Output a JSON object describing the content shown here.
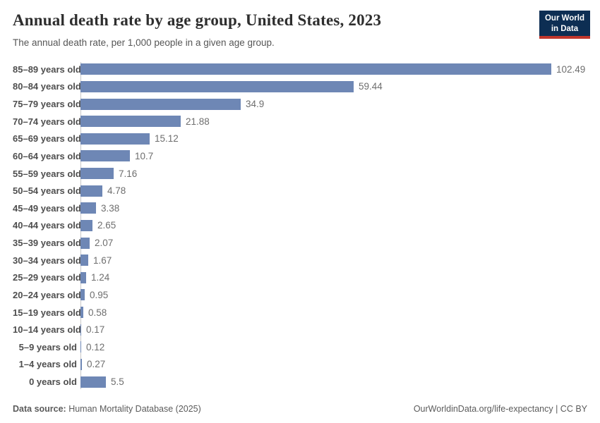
{
  "header": {
    "title": "Annual death rate by age group, United States, 2023",
    "subtitle": "The annual death rate, per 1,000 people in a given age group.",
    "logo": {
      "line1": "Our World",
      "line2": "in Data"
    }
  },
  "chart_data": {
    "type": "bar",
    "orientation": "horizontal",
    "title": "Annual death rate by age group, United States, 2023",
    "subtitle": "The annual death rate, per 1,000 people in a given age group.",
    "xlabel": "",
    "ylabel": "",
    "xlim": [
      0,
      102.49
    ],
    "grid": false,
    "legend": false,
    "bar_color": "#6e87b5",
    "categories": [
      "85–89 years old",
      "80–84 years old",
      "75–79 years old",
      "70–74 years old",
      "65–69 years old",
      "60–64 years old",
      "55–59 years old",
      "50–54 years old",
      "45–49 years old",
      "40–44 years old",
      "35–39 years old",
      "30–34 years old",
      "25–29 years old",
      "20–24 years old",
      "15–19 years old",
      "10–14 years old",
      "5–9 years old",
      "1–4 years old",
      "0 years old"
    ],
    "values": [
      102.49,
      59.44,
      34.9,
      21.88,
      15.12,
      10.7,
      7.16,
      4.78,
      3.38,
      2.65,
      2.07,
      1.67,
      1.24,
      0.95,
      0.58,
      0.17,
      0.12,
      0.27,
      5.5
    ],
    "value_labels": [
      "102.49",
      "59.44",
      "34.9",
      "21.88",
      "15.12",
      "10.7",
      "7.16",
      "4.78",
      "3.38",
      "2.65",
      "2.07",
      "1.67",
      "1.24",
      "0.95",
      "0.58",
      "0.17",
      "0.12",
      "0.27",
      "5.5"
    ]
  },
  "footer": {
    "source_label": "Data source:",
    "source_value": " Human Mortality Database (2025)",
    "credit": "OurWorldinData.org/life-expectancy | CC BY"
  },
  "colors": {
    "bar": "#6e87b5",
    "axis_line": "#c8c8c8",
    "logo_bg": "#0d2e53",
    "logo_accent": "#c0362c",
    "title_text": "#2e2e2e",
    "muted_text": "#5b5b5b"
  }
}
